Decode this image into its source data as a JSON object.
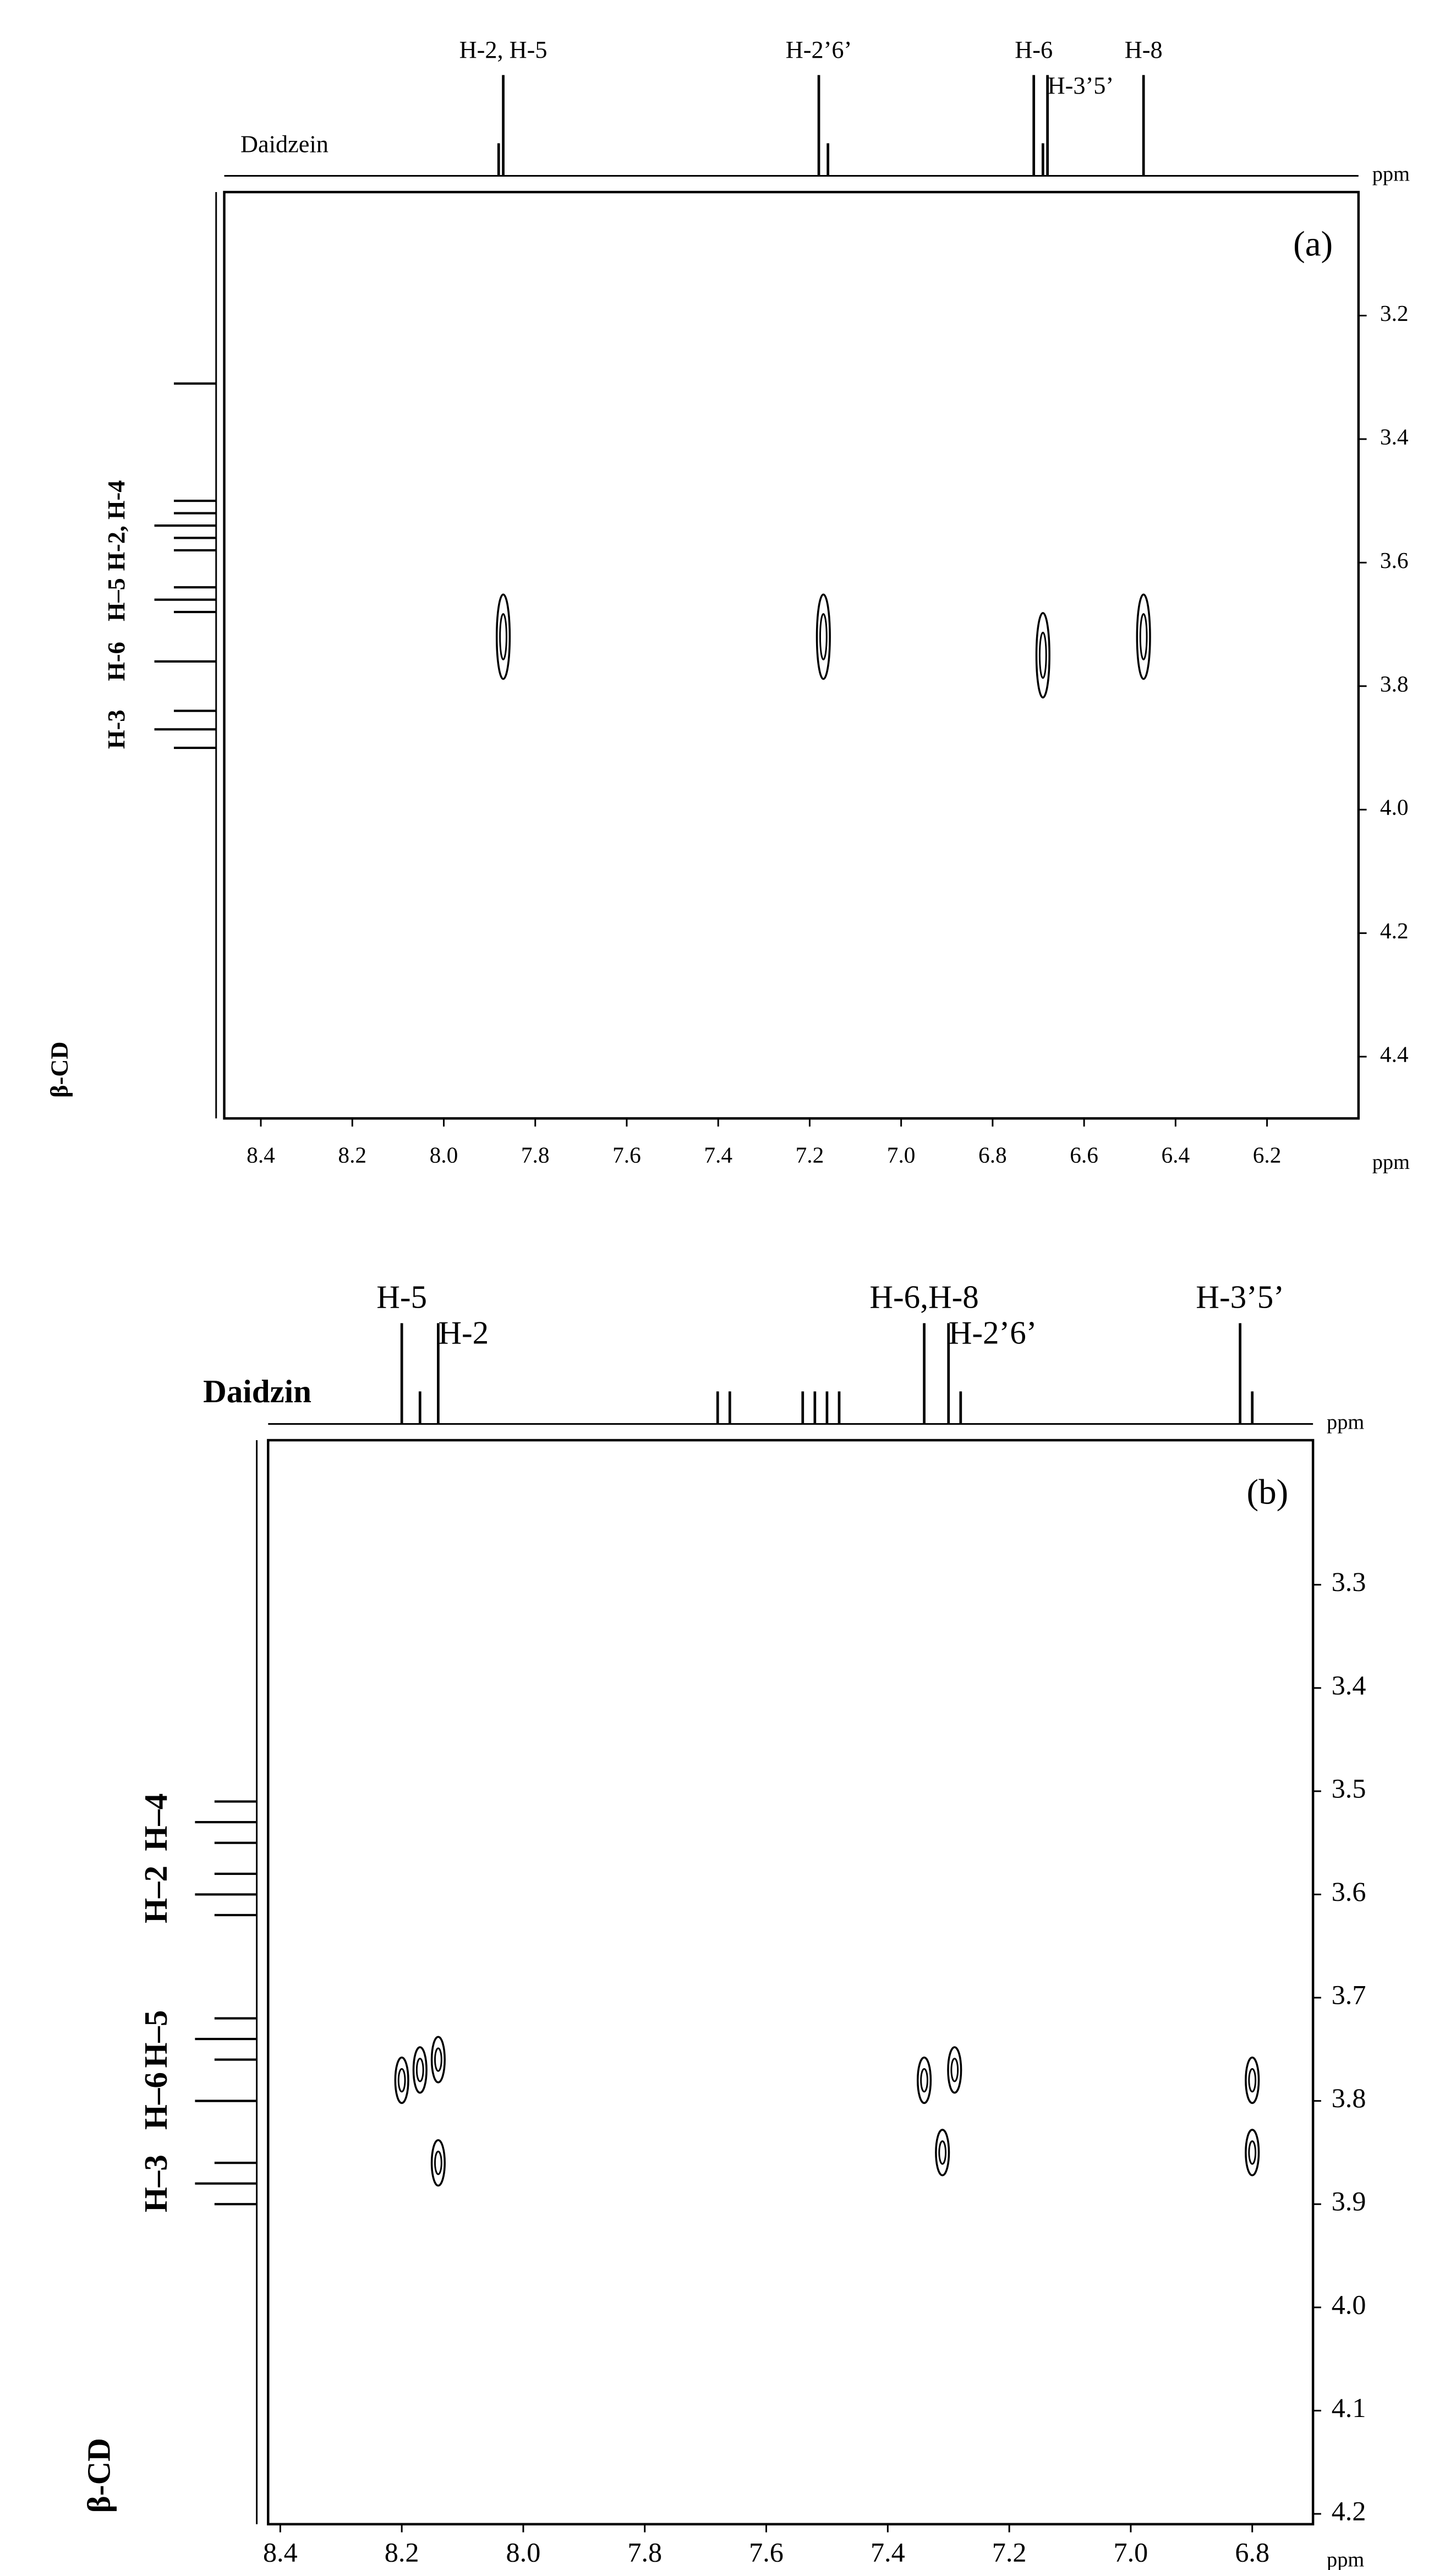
{
  "chart_data": [
    {
      "type": "contour",
      "panel_label": "(a)",
      "xlabel": "ppm",
      "top_axis_label": "ppm",
      "xlim": [
        8.48,
        6.0
      ],
      "ylim": [
        3.0,
        4.5
      ],
      "xticks": [
        8.4,
        8.2,
        {
          "value": 8,
          "label": "8.0"
        },
        7.8,
        7.6,
        7.4,
        7.2,
        {
          "value": 7,
          "label": "7.0"
        },
        6.8,
        6.6,
        6.4,
        6.2
      ],
      "yticks": [
        3.2,
        3.4,
        3.6,
        3.8,
        {
          "value": 4,
          "label": "4.0"
        },
        4.2,
        4.4
      ],
      "top_spectrum": {
        "name": "Daidzein",
        "peaks": [
          {
            "x": 7.88
          },
          {
            "x": 7.87,
            "label": "H-2, H-5"
          },
          {
            "x": 7.18,
            "label": "H-2’6’"
          },
          {
            "x": 7.16
          },
          {
            "x": 6.71,
            "label": "H-6"
          },
          {
            "x": 6.69
          },
          {
            "x": 6.68,
            "label": "H-3’5’"
          },
          {
            "x": 6.47,
            "label": "H-8"
          }
        ]
      },
      "side_spectrum": {
        "name": "β-CD",
        "peaks": [
          {
            "y": 3.31
          },
          {
            "y": 3.5
          },
          {
            "y": 3.52
          },
          {
            "y": 3.54,
            "label": "H-2, H-4"
          },
          {
            "y": 3.56
          },
          {
            "y": 3.58
          },
          {
            "y": 3.64
          },
          {
            "y": 3.66,
            "label": "H–5"
          },
          {
            "y": 3.68
          },
          {
            "y": 3.76,
            "label": "H-6"
          },
          {
            "y": 3.84
          },
          {
            "y": 3.87,
            "label": "H-3"
          },
          {
            "y": 3.9
          }
        ]
      },
      "cross_peaks": {
        "x": [
          7.87,
          7.17,
          6.69,
          6.47
        ],
        "y": [
          3.72,
          3.72,
          3.75,
          3.72
        ]
      }
    },
    {
      "type": "contour",
      "panel_label": "(b)",
      "xlabel": "ppm",
      "top_axis_label": "ppm",
      "xlim": [
        8.42,
        6.7
      ],
      "ylim": [
        3.16,
        4.21
      ],
      "xticks": [
        8.4,
        8.2,
        {
          "value": 8,
          "label": "8.0"
        },
        7.8,
        7.6,
        7.4,
        7.2,
        {
          "value": 7,
          "label": "7.0"
        },
        6.8
      ],
      "yticks": [
        3.3,
        3.4,
        3.5,
        3.6,
        3.7,
        3.8,
        3.9,
        {
          "value": 4,
          "label": "4.0"
        },
        4.1,
        4.2
      ],
      "top_spectrum": {
        "name": "Daidzin",
        "peaks": [
          {
            "x": 8.2,
            "label": "H-5"
          },
          {
            "x": 8.17
          },
          {
            "x": 8.14,
            "label": "H-2"
          },
          {
            "x": 7.68
          },
          {
            "x": 7.66
          },
          {
            "x": 7.54
          },
          {
            "x": 7.52
          },
          {
            "x": 7.5
          },
          {
            "x": 7.48
          },
          {
            "x": 7.34,
            "label": "H-6,H-8"
          },
          {
            "x": 7.3,
            "label": "H-2’6’"
          },
          {
            "x": 7.28
          },
          {
            "x": 6.82,
            "label": "H-3’5’"
          },
          {
            "x": 6.8
          }
        ]
      },
      "side_spectrum": {
        "name": "β-CD",
        "peaks": [
          {
            "y": 3.51
          },
          {
            "y": 3.53,
            "label": "H–4"
          },
          {
            "y": 3.55
          },
          {
            "y": 3.58
          },
          {
            "y": 3.6,
            "label": "H–2"
          },
          {
            "y": 3.62
          },
          {
            "y": 3.72
          },
          {
            "y": 3.74,
            "label": "H–5"
          },
          {
            "y": 3.76
          },
          {
            "y": 3.8,
            "label": "H–6"
          },
          {
            "y": 3.86
          },
          {
            "y": 3.88,
            "label": "H–3"
          },
          {
            "y": 3.9
          }
        ]
      },
      "cross_peaks": {
        "x": [
          8.2,
          8.17,
          8.14,
          8.14,
          7.34,
          7.29,
          7.31,
          6.8,
          6.8
        ],
        "y": [
          3.78,
          3.77,
          3.76,
          3.86,
          3.78,
          3.77,
          3.85,
          3.78,
          3.85
        ]
      }
    }
  ]
}
